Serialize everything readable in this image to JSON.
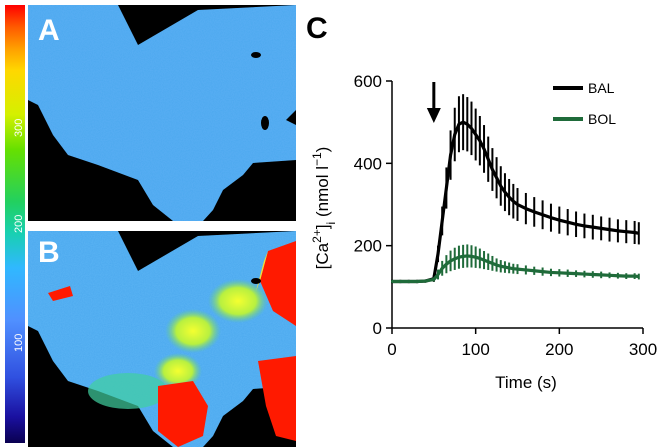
{
  "panels": {
    "a_label": "A",
    "b_label": "B",
    "c_label": "C"
  },
  "colorbar": {
    "ticks": [
      "300",
      "200",
      "100"
    ],
    "tick_values": [
      300,
      200,
      100
    ],
    "range": [
      0,
      400
    ]
  },
  "colors": {
    "BAL": "#000000",
    "BOL": "#1f6b3a",
    "arrow": "#000000"
  },
  "chart_data": {
    "type": "line",
    "ylabel_parts": [
      "[Ca",
      "2+",
      "]",
      "i",
      " (nmol l",
      "−1",
      ")"
    ],
    "xlabel": "Time (s)",
    "xlim": [
      0,
      300
    ],
    "ylim": [
      0,
      600
    ],
    "xticks": [
      0,
      100,
      200,
      300
    ],
    "yticks": [
      0,
      200,
      400,
      600
    ],
    "arrow_x": 50,
    "legend": [
      "BAL",
      "BOL"
    ],
    "series": [
      {
        "name": "BAL",
        "x": [
          0,
          10,
          20,
          30,
          40,
          50,
          55,
          60,
          65,
          70,
          75,
          80,
          85,
          90,
          95,
          100,
          105,
          110,
          115,
          120,
          125,
          130,
          135,
          140,
          145,
          150,
          160,
          170,
          180,
          190,
          200,
          210,
          220,
          230,
          240,
          250,
          260,
          270,
          280,
          290,
          295
        ],
        "y": [
          113,
          113,
          113,
          113,
          114,
          120,
          180,
          260,
          340,
          420,
          470,
          495,
          500,
          495,
          485,
          470,
          455,
          435,
          410,
          385,
          365,
          345,
          330,
          318,
          308,
          300,
          290,
          282,
          275,
          268,
          262,
          257,
          252,
          248,
          245,
          242,
          239,
          236,
          234,
          232,
          230
        ],
        "err": [
          4,
          4,
          4,
          4,
          4,
          8,
          20,
          35,
          50,
          60,
          65,
          68,
          68,
          66,
          65,
          63,
          60,
          58,
          55,
          52,
          50,
          48,
          46,
          44,
          42,
          40,
          38,
          36,
          35,
          34,
          33,
          32,
          31,
          30,
          30,
          29,
          29,
          28,
          28,
          28,
          27
        ]
      },
      {
        "name": "BOL",
        "x": [
          0,
          10,
          20,
          30,
          40,
          50,
          55,
          60,
          65,
          70,
          75,
          80,
          85,
          90,
          95,
          100,
          105,
          110,
          115,
          120,
          125,
          130,
          135,
          140,
          145,
          150,
          160,
          170,
          180,
          190,
          200,
          210,
          220,
          230,
          240,
          250,
          260,
          270,
          280,
          290,
          295
        ],
        "y": [
          113,
          113,
          113,
          113,
          114,
          118,
          130,
          145,
          155,
          163,
          168,
          172,
          174,
          175,
          174,
          172,
          169,
          165,
          161,
          157,
          153,
          150,
          148,
          146,
          144,
          143,
          141,
          139,
          137,
          135,
          134,
          133,
          132,
          131,
          130,
          129,
          128,
          127,
          126,
          126,
          125
        ],
        "err": [
          3,
          3,
          3,
          3,
          3,
          5,
          12,
          18,
          22,
          25,
          27,
          28,
          28,
          28,
          27,
          26,
          24,
          22,
          20,
          18,
          16,
          15,
          14,
          13,
          12,
          12,
          11,
          10,
          10,
          9,
          9,
          9,
          8,
          8,
          8,
          8,
          7,
          7,
          7,
          7,
          7
        ]
      }
    ]
  }
}
